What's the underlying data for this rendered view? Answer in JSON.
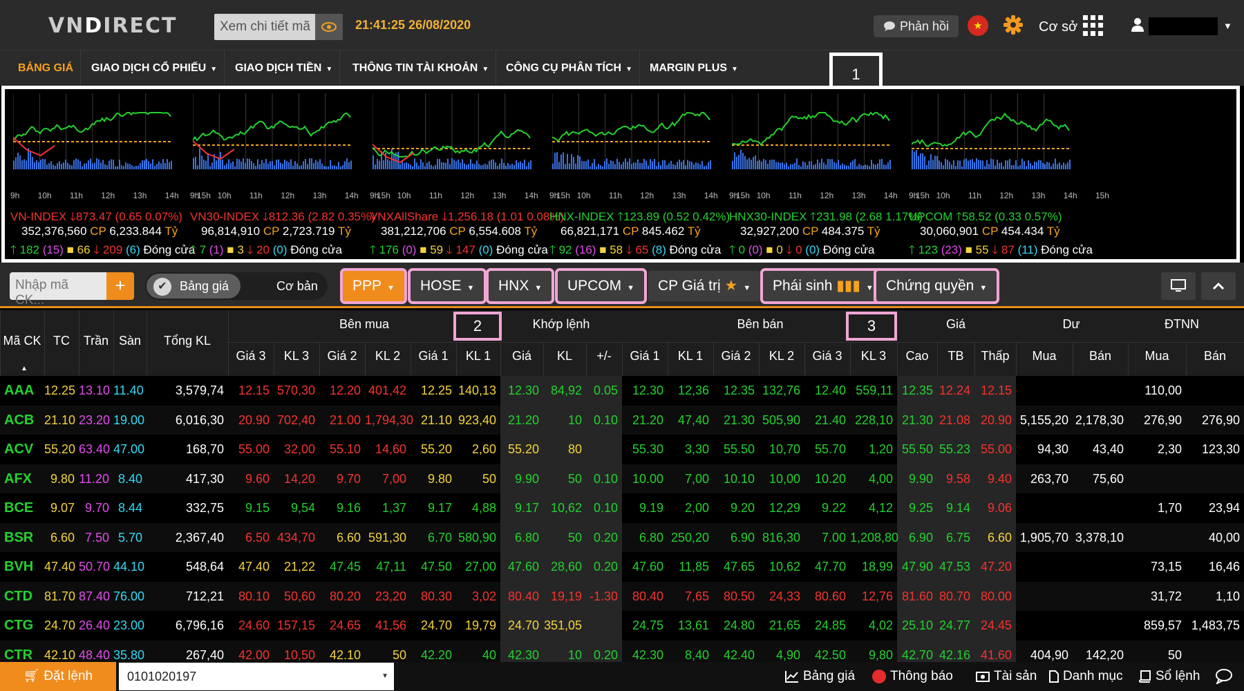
{
  "header": {
    "logo": "VNDIRECT",
    "search_placeholder": "Xem chi tiết mã",
    "clock": "21:41:25 26/08/2020",
    "feedback_label": "Phản hồi",
    "base_label": "Cơ sở"
  },
  "nav": {
    "items": [
      {
        "label": "BẢNG GIÁ",
        "dropdown": false
      },
      {
        "label": "GIAO DỊCH CỔ PHIẾU",
        "dropdown": true
      },
      {
        "label": "GIAO DỊCH TIỀN",
        "dropdown": true
      },
      {
        "label": "THÔNG TIN TÀI KHOẢN",
        "dropdown": true
      },
      {
        "label": "CÔNG CỤ PHÂN TÍCH",
        "dropdown": true
      },
      {
        "label": "MARGIN PLUS",
        "dropdown": true
      }
    ],
    "callout": "1"
  },
  "times": [
    "9h",
    "10h",
    "11h",
    "12h",
    "13h",
    "14h",
    "15h"
  ],
  "indices": [
    {
      "name": "VN-INDEX",
      "dir": "down",
      "value": "873.47",
      "change": "(0.65 0.07%)",
      "volume": "352,376,560",
      "value_ty": "6,233.844",
      "up": "182",
      "up_ceil": "(15)",
      "flat": "66",
      "down": "209",
      "down_floor": "(6)",
      "status": "Đóng cửa"
    },
    {
      "name": "VN30-INDEX",
      "dir": "down",
      "value": "812.36",
      "change": "(2.82 0.35%)",
      "volume": "96,814,910",
      "value_ty": "2,723.719",
      "up": "7",
      "up_ceil": "(1)",
      "flat": "3",
      "down": "20",
      "down_floor": "(0)",
      "status": "Đóng cửa"
    },
    {
      "name": "VNXAllShare",
      "dir": "down",
      "value": "1,256.18",
      "change": "(1.01 0.08%)",
      "volume": "381,212,706",
      "value_ty": "6,554.608",
      "up": "176",
      "up_ceil": "(0)",
      "flat": "59",
      "down": "147",
      "down_floor": "(0)",
      "status": "Đóng cửa"
    },
    {
      "name": "HNX-INDEX",
      "dir": "up",
      "value": "123.89",
      "change": "(0.52 0.42%)",
      "volume": "66,821,171",
      "value_ty": "845.462",
      "up": "92",
      "up_ceil": "(16)",
      "flat": "58",
      "down": "65",
      "down_floor": "(8)",
      "status": "Đóng cửa"
    },
    {
      "name": "HNX30-INDEX",
      "dir": "up",
      "value": "231.98",
      "change": "(2.68 1.17%)",
      "volume": "32,927,200",
      "value_ty": "484.375",
      "up": "0",
      "up_ceil": "(0)",
      "flat": "0",
      "down": "0",
      "down_floor": "(0)",
      "status": "Đóng cửa"
    },
    {
      "name": "UPCOM",
      "dir": "up",
      "value": "58.52",
      "change": "(0.33 0.57%)",
      "volume": "30,060,901",
      "value_ty": "454.434",
      "up": "123",
      "up_ceil": "(23)",
      "flat": "55",
      "down": "87",
      "down_floor": "(11)",
      "status": "Đóng cửa"
    }
  ],
  "labels": {
    "cp": "CP",
    "ty": "Tỷ"
  },
  "toolbar": {
    "code_placeholder": "Nhập mã CK...",
    "add_label": "+",
    "toggle_price": "Bảng giá",
    "toggle_basic": "Cơ bản",
    "ppp": "PPP",
    "hose": "HOSE",
    "hnx": "HNX",
    "upcom": "UPCOM",
    "cp_value": "CP Giá trị",
    "derivatives": "Phái sinh",
    "warrants": "Chứng quyền"
  },
  "table": {
    "groups": {
      "buy": "Bên mua",
      "match": "Khớp lệnh",
      "sell": "Bên bán",
      "price": "Giá",
      "remain": "Dư",
      "foreign": "ĐTNN"
    },
    "callout_2": "2",
    "callout_3": "3",
    "columns": [
      "Mã CK",
      "TC",
      "Trần",
      "Sàn",
      "Tổng KL",
      "Giá 3",
      "KL 3",
      "Giá 2",
      "KL 2",
      "Giá 1",
      "KL 1",
      "Giá",
      "KL",
      "+/-",
      "Giá 1",
      "KL 1",
      "Giá 2",
      "KL 2",
      "Giá 3",
      "KL 3",
      "Cao",
      "TB",
      "Thấp",
      "Mua",
      "Bán",
      "Mua",
      "Bán"
    ],
    "rows": [
      {
        "c": [
          "AAA",
          "12.25",
          "13.10",
          "11.40",
          "3,579,74",
          "12.15",
          "570,30",
          "12.20",
          "401,42",
          "12.25",
          "140,13",
          "12.30",
          "84,92",
          "0.05",
          "12.30",
          "12,36",
          "12.35",
          "132,76",
          "12.40",
          "559,11",
          "12.35",
          "12.24",
          "12.15",
          "",
          "",
          "110,00",
          ""
        ],
        "t": [
          "g",
          "y",
          "p",
          "c",
          "w",
          "r",
          "r",
          "r",
          "r",
          "y",
          "y",
          "g",
          "g",
          "g",
          "g",
          "g",
          "g",
          "g",
          "g",
          "g",
          "g",
          "r",
          "r",
          "w",
          "w",
          "w",
          "w"
        ]
      },
      {
        "c": [
          "ACB",
          "21.10",
          "23.20",
          "19.00",
          "6,016,30",
          "20.90",
          "702,40",
          "21.00",
          "1,794,30",
          "21.10",
          "923,40",
          "21.20",
          "10",
          "0.10",
          "21.20",
          "47,40",
          "21.30",
          "505,90",
          "21.40",
          "228,10",
          "21.30",
          "21.08",
          "20.90",
          "5,155,20",
          "2,178,30",
          "276,90",
          "276,90"
        ],
        "t": [
          "g",
          "y",
          "p",
          "c",
          "w",
          "r",
          "r",
          "r",
          "r",
          "y",
          "y",
          "g",
          "g",
          "g",
          "g",
          "g",
          "g",
          "g",
          "g",
          "g",
          "g",
          "r",
          "r",
          "w",
          "w",
          "w",
          "w"
        ]
      },
      {
        "c": [
          "ACV",
          "55.20",
          "63.40",
          "47.00",
          "168,70",
          "55.00",
          "32,00",
          "55.10",
          "14,60",
          "55.20",
          "2,60",
          "55.20",
          "80",
          "",
          "55.30",
          "3,30",
          "55.50",
          "10,70",
          "55.70",
          "1,20",
          "55.50",
          "55.23",
          "55.00",
          "94,30",
          "43,40",
          "2,30",
          "123,30"
        ],
        "t": [
          "g",
          "y",
          "p",
          "c",
          "w",
          "r",
          "r",
          "r",
          "r",
          "y",
          "y",
          "y",
          "y",
          "w",
          "g",
          "g",
          "g",
          "g",
          "g",
          "g",
          "g",
          "g",
          "r",
          "w",
          "w",
          "w",
          "w"
        ]
      },
      {
        "c": [
          "AFX",
          "9.80",
          "11.20",
          "8.40",
          "417,30",
          "9.60",
          "14,20",
          "9.70",
          "7,00",
          "9.80",
          "50",
          "9.90",
          "50",
          "0.10",
          "10.00",
          "7,00",
          "10.10",
          "10,00",
          "10.20",
          "4,00",
          "9.90",
          "9.58",
          "9.40",
          "263,70",
          "75,60",
          "",
          ""
        ],
        "t": [
          "g",
          "y",
          "p",
          "c",
          "w",
          "r",
          "r",
          "r",
          "r",
          "y",
          "y",
          "g",
          "g",
          "g",
          "g",
          "g",
          "g",
          "g",
          "g",
          "g",
          "g",
          "r",
          "r",
          "w",
          "w",
          "w",
          "w"
        ]
      },
      {
        "c": [
          "BCE",
          "9.07",
          "9.70",
          "8.44",
          "332,75",
          "9.15",
          "9,54",
          "9.16",
          "1,37",
          "9.17",
          "4,88",
          "9.17",
          "10,62",
          "0.10",
          "9.19",
          "2,00",
          "9.20",
          "12,29",
          "9.22",
          "4,12",
          "9.25",
          "9.14",
          "9.06",
          "",
          "",
          "1,70",
          "23,94"
        ],
        "t": [
          "g",
          "y",
          "p",
          "c",
          "w",
          "g",
          "g",
          "g",
          "g",
          "g",
          "g",
          "g",
          "g",
          "g",
          "g",
          "g",
          "g",
          "g",
          "g",
          "g",
          "g",
          "g",
          "r",
          "w",
          "w",
          "w",
          "w"
        ]
      },
      {
        "c": [
          "BSR",
          "6.60",
          "7.50",
          "5.70",
          "2,367,40",
          "6.50",
          "434,70",
          "6.60",
          "591,30",
          "6.70",
          "580,90",
          "6.80",
          "50",
          "0.20",
          "6.80",
          "250,20",
          "6.90",
          "816,30",
          "7.00",
          "1,208,80",
          "6.90",
          "6.75",
          "6.60",
          "1,905,70",
          "3,378,10",
          "",
          "40,00"
        ],
        "t": [
          "g",
          "y",
          "p",
          "c",
          "w",
          "r",
          "r",
          "y",
          "y",
          "g",
          "g",
          "g",
          "g",
          "g",
          "g",
          "g",
          "g",
          "g",
          "g",
          "g",
          "g",
          "g",
          "y",
          "w",
          "w",
          "w",
          "w"
        ]
      },
      {
        "c": [
          "BVH",
          "47.40",
          "50.70",
          "44.10",
          "548,64",
          "47.40",
          "21,22",
          "47.45",
          "47,11",
          "47.50",
          "27,00",
          "47.60",
          "28,60",
          "0.20",
          "47.60",
          "11,85",
          "47.65",
          "10,62",
          "47.70",
          "18,99",
          "47.90",
          "47.53",
          "47.20",
          "",
          "",
          "73,15",
          "16,46"
        ],
        "t": [
          "g",
          "y",
          "p",
          "c",
          "w",
          "y",
          "y",
          "g",
          "g",
          "g",
          "g",
          "g",
          "g",
          "g",
          "g",
          "g",
          "g",
          "g",
          "g",
          "g",
          "g",
          "g",
          "r",
          "w",
          "w",
          "w",
          "w"
        ]
      },
      {
        "c": [
          "CTD",
          "81.70",
          "87.40",
          "76.00",
          "712,21",
          "80.10",
          "50,60",
          "80.20",
          "23,20",
          "80.30",
          "3,02",
          "80.40",
          "19,19",
          "-1.30",
          "80.40",
          "7,65",
          "80.50",
          "24,33",
          "80.60",
          "12,76",
          "81.60",
          "80.70",
          "80.00",
          "",
          "",
          "31,72",
          "1,10"
        ],
        "t": [
          "g",
          "y",
          "p",
          "c",
          "w",
          "r",
          "r",
          "r",
          "r",
          "r",
          "r",
          "r",
          "r",
          "r",
          "r",
          "r",
          "r",
          "r",
          "r",
          "r",
          "r",
          "r",
          "r",
          "w",
          "w",
          "w",
          "w"
        ]
      },
      {
        "c": [
          "CTG",
          "24.70",
          "26.40",
          "23.00",
          "6,796,16",
          "24.60",
          "157,15",
          "24.65",
          "41,56",
          "24.70",
          "19,79",
          "24.70",
          "351,05",
          "",
          "24.75",
          "13,61",
          "24.80",
          "21,65",
          "24.85",
          "4,02",
          "25.10",
          "24.77",
          "24.45",
          "",
          "",
          "859,57",
          "1,483,75"
        ],
        "t": [
          "g",
          "y",
          "p",
          "c",
          "w",
          "r",
          "r",
          "r",
          "r",
          "y",
          "y",
          "y",
          "y",
          "w",
          "g",
          "g",
          "g",
          "g",
          "g",
          "g",
          "g",
          "g",
          "r",
          "w",
          "w",
          "w",
          "w"
        ]
      },
      {
        "c": [
          "CTR",
          "42.10",
          "48.40",
          "35.80",
          "267,40",
          "42.00",
          "10,50",
          "42.10",
          "50",
          "42.20",
          "40",
          "42.30",
          "10",
          "0.20",
          "42.30",
          "8,40",
          "42.40",
          "4,90",
          "42.50",
          "9,80",
          "42.70",
          "42.16",
          "41.60",
          "404,90",
          "142,20",
          "50",
          ""
        ],
        "t": [
          "g",
          "y",
          "p",
          "c",
          "w",
          "r",
          "r",
          "y",
          "y",
          "g",
          "g",
          "g",
          "g",
          "g",
          "g",
          "g",
          "g",
          "g",
          "g",
          "g",
          "g",
          "g",
          "r",
          "w",
          "w",
          "w",
          "w"
        ]
      }
    ]
  },
  "bottom": {
    "order_label": "Đặt lệnh",
    "account": "0101020197",
    "price_board": "Bảng giá",
    "notifications": "Thông báo",
    "assets": "Tài sản",
    "watchlist": "Danh mục",
    "order_book": "Sổ lệnh"
  },
  "colors": {
    "accent": "#f08c1c",
    "up": "#23d12e",
    "down": "#f5332f",
    "ref": "#f5d33b",
    "ceil": "#e24cea",
    "floor": "#33d9f5",
    "callout": "#f0a6d4"
  }
}
